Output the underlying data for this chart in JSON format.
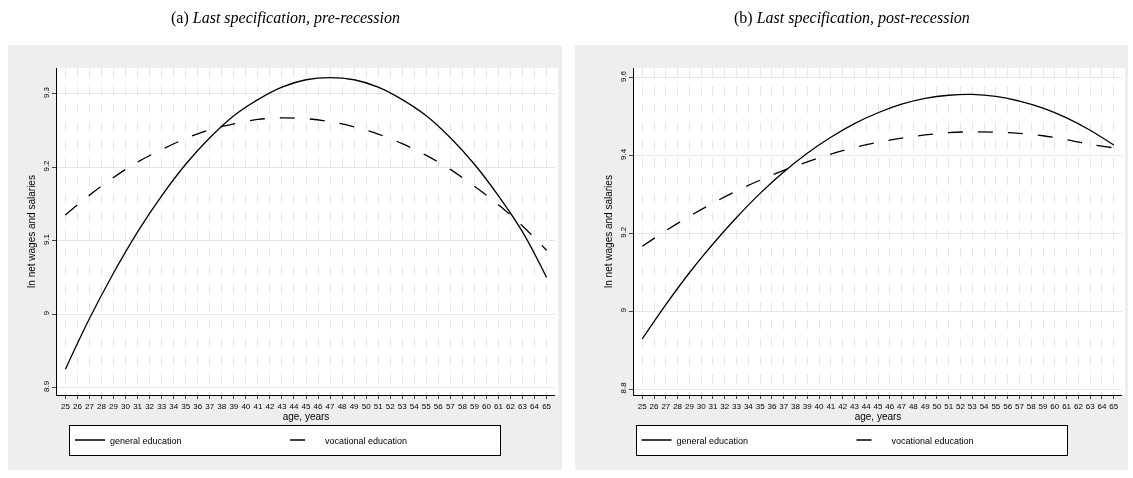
{
  "chart_data": [
    {
      "type": "line",
      "title": "(a) Last specification, pre-recession",
      "xlabel": "age, years",
      "ylabel": "ln net wages and salaries",
      "x": [
        25,
        27,
        29,
        31,
        33,
        35,
        37,
        39,
        41,
        43,
        45,
        47,
        49,
        51,
        53,
        55,
        57,
        59,
        61,
        63,
        65
      ],
      "series": [
        {
          "name": "general education",
          "color": "#000000",
          "line_style": "solid",
          "values": [
            8.925,
            8.994,
            9.056,
            9.112,
            9.161,
            9.204,
            9.24,
            9.27,
            9.292,
            9.309,
            9.319,
            9.322,
            9.319,
            9.309,
            9.292,
            9.27,
            9.24,
            9.204,
            9.161,
            9.112,
            9.05
          ]
        },
        {
          "name": "vocational education",
          "color": "#000000",
          "line_style": "dashed",
          "values": [
            9.135,
            9.162,
            9.186,
            9.207,
            9.224,
            9.239,
            9.251,
            9.259,
            9.265,
            9.267,
            9.266,
            9.262,
            9.255,
            9.245,
            9.232,
            9.216,
            9.197,
            9.174,
            9.149,
            9.12,
            9.087
          ]
        }
      ],
      "xlim": [
        24.3,
        65.7
      ],
      "ylim": [
        8.89,
        9.335
      ],
      "xticks": [
        25,
        26,
        27,
        28,
        29,
        30,
        31,
        32,
        33,
        34,
        35,
        36,
        37,
        38,
        39,
        40,
        41,
        42,
        43,
        44,
        45,
        46,
        47,
        48,
        49,
        50,
        51,
        52,
        53,
        54,
        55,
        56,
        57,
        58,
        59,
        60,
        61,
        62,
        63,
        64,
        65
      ],
      "yticks": [
        8.9,
        9,
        9.1,
        9.2,
        9.3
      ],
      "grid": true,
      "legend": "bottom"
    },
    {
      "type": "line",
      "title": "(b) Last specification, post-recession",
      "xlabel": "age, years",
      "ylabel": "ln net wages and salaries",
      "x": [
        25,
        27,
        29,
        31,
        33,
        35,
        37,
        39,
        41,
        43,
        45,
        47,
        49,
        51,
        53,
        55,
        57,
        59,
        61,
        63,
        65
      ],
      "series": [
        {
          "name": "general education",
          "color": "#000000",
          "line_style": "solid",
          "values": [
            8.929,
            9.017,
            9.099,
            9.173,
            9.241,
            9.303,
            9.358,
            9.406,
            9.447,
            9.482,
            9.51,
            9.532,
            9.547,
            9.555,
            9.557,
            9.552,
            9.54,
            9.522,
            9.497,
            9.465,
            9.427
          ]
        },
        {
          "name": "vocational education",
          "color": "#000000",
          "line_style": "dashed",
          "values": [
            9.167,
            9.207,
            9.244,
            9.278,
            9.309,
            9.337,
            9.362,
            9.384,
            9.404,
            9.421,
            9.434,
            9.445,
            9.453,
            9.459,
            9.461,
            9.46,
            9.457,
            9.451,
            9.441,
            9.429,
            9.42
          ]
        }
      ],
      "xlim": [
        24.3,
        65.7
      ],
      "ylim": [
        8.785,
        9.625
      ],
      "xticks": [
        25,
        26,
        27,
        28,
        29,
        30,
        31,
        32,
        33,
        34,
        35,
        36,
        37,
        38,
        39,
        40,
        41,
        42,
        43,
        44,
        45,
        46,
        47,
        48,
        49,
        50,
        51,
        52,
        53,
        54,
        55,
        56,
        57,
        58,
        59,
        60,
        61,
        62,
        63,
        64,
        65
      ],
      "yticks": [
        8.8,
        9,
        9.2,
        9.4,
        9.6
      ],
      "grid": true,
      "legend": "bottom"
    }
  ]
}
